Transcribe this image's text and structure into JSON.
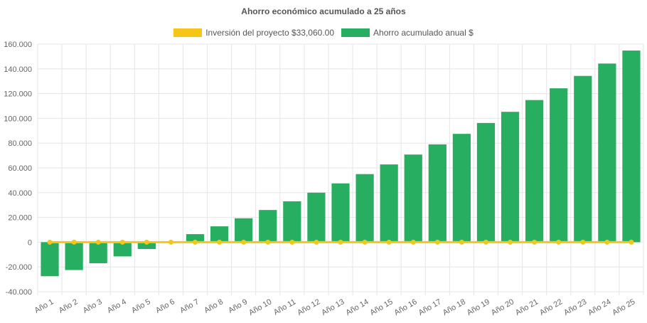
{
  "chart_data": {
    "type": "bar",
    "title": "Ahorro económico acumulado a 25 años",
    "categories": [
      "Año 1",
      "Año 2",
      "Año 3",
      "Año 4",
      "Año 5",
      "Año 6",
      "Año 7",
      "Año 8",
      "Año 9",
      "Año 10",
      "Año 11",
      "Año 12",
      "Año 13",
      "Año 14",
      "Año 15",
      "Año 16",
      "Año 17",
      "Año 18",
      "Año 19",
      "Año 20",
      "Año 21",
      "Año 22",
      "Año 23",
      "Año 24",
      "Año 25"
    ],
    "series": [
      {
        "name": "Inversión del proyecto $33,060.00",
        "kind": "line",
        "color": "#f5c518",
        "values": [
          0,
          0,
          0,
          0,
          0,
          0,
          0,
          0,
          0,
          0,
          0,
          0,
          0,
          0,
          0,
          0,
          0,
          0,
          0,
          0,
          0,
          0,
          0,
          0,
          0
        ]
      },
      {
        "name": "Ahorro acumulado anual $",
        "kind": "bar",
        "color": "#27ae60",
        "values": [
          -27500,
          -22500,
          -17000,
          -11500,
          -5500,
          0,
          6500,
          12800,
          19300,
          26000,
          33000,
          40000,
          47500,
          55000,
          62800,
          70800,
          79000,
          87500,
          96300,
          105300,
          114800,
          124300,
          134300,
          144300,
          154800
        ]
      }
    ],
    "ylim": [
      -40000,
      160000
    ],
    "ytick_step": 20000,
    "yticks": [
      "-40.000",
      "-20.000",
      "0",
      "20.000",
      "40.000",
      "60.000",
      "80.000",
      "100.000",
      "120.000",
      "140.000",
      "160.000"
    ],
    "grid": true,
    "legend_position": "top"
  }
}
